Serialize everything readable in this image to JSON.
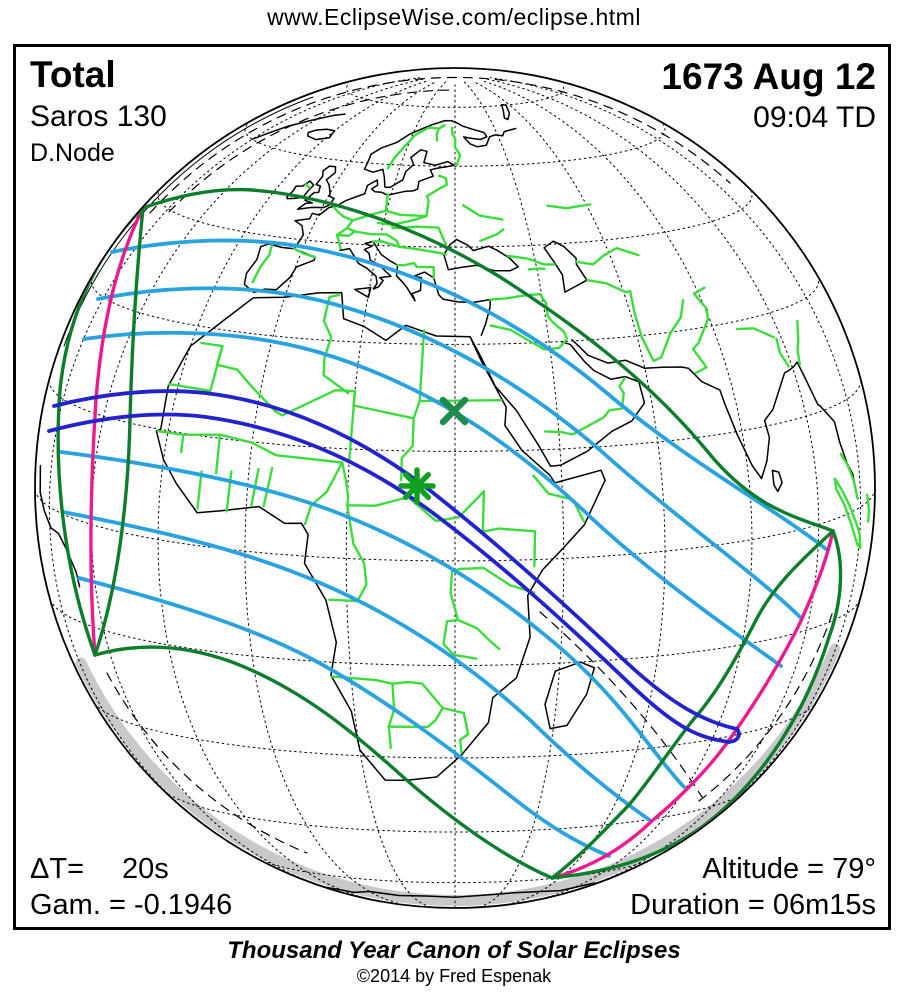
{
  "header": {
    "url": "www.EclipseWise.com/eclipse.html"
  },
  "eclipse": {
    "type": "Total",
    "saros": "Saros 130",
    "node": "D.Node",
    "date": "1673 Aug 12",
    "time": "09:04 TD",
    "delta_t_label": "ΔT=",
    "delta_t_value": "20s",
    "gamma": "Gam. = -0.1946",
    "altitude": "Altitude = 79°",
    "duration": "Duration = 06m15s"
  },
  "footer": {
    "title": "Thousand Year Canon of Solar Eclipses",
    "copyright": "©2014 by Fred Espenak"
  },
  "map": {
    "projection": "orthographic globe",
    "markers": {
      "greatest_eclipse": "asterisk",
      "greatest_duration": "x-cross"
    },
    "colors": {
      "coastline": "#000000",
      "country_borders": "#3cdc3c",
      "penumbral_limit_green": "#0b7d2b",
      "umbral_path_blue": "#2323cd",
      "contour_cyan": "#29a3e0",
      "sunrise_sunset_magenta": "#ec1a8f",
      "greatest_duration_marker": "#1f8b4c",
      "greatest_eclipse_marker": "#0fa01f",
      "limb_shading": "#c9c9c9",
      "graticule": "#000000"
    }
  }
}
